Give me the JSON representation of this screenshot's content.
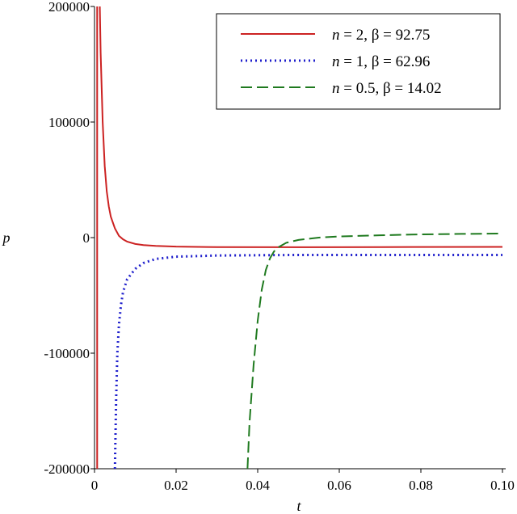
{
  "chart_data": {
    "type": "line",
    "xlabel": "t",
    "ylabel": "p",
    "xlim": [
      0,
      0.1
    ],
    "ylim": [
      -200000,
      200000
    ],
    "x_ticks": [
      0,
      0.02,
      0.04,
      0.06,
      0.08,
      0.1
    ],
    "x_tick_labels": [
      "0",
      "0.02",
      "0.04",
      "0.06",
      "0.08",
      "0.10"
    ],
    "y_ticks": [
      -200000,
      -100000,
      0,
      100000,
      200000
    ],
    "y_tick_labels": [
      "-200000",
      "-100000",
      "0",
      "100000",
      "200000"
    ],
    "grid": false,
    "legend_position": "top-right",
    "series": [
      {
        "name": "n = 2, β = 92.75",
        "n_label": "n",
        "rest_label": " = 2, β = 92.75",
        "color": "#cc2222",
        "style": "solid",
        "vertical_asymptote": 0.00065,
        "points": [
          [
            0.0013,
            200000
          ],
          [
            0.0015,
            160000
          ],
          [
            0.002,
            100000
          ],
          [
            0.0025,
            62000
          ],
          [
            0.003,
            40000
          ],
          [
            0.0035,
            27000
          ],
          [
            0.004,
            18000
          ],
          [
            0.005,
            8000
          ],
          [
            0.006,
            1500
          ],
          [
            0.007,
            -1500
          ],
          [
            0.008,
            -3500
          ],
          [
            0.01,
            -5500
          ],
          [
            0.012,
            -6500
          ],
          [
            0.015,
            -7200
          ],
          [
            0.02,
            -7800
          ],
          [
            0.03,
            -8200
          ],
          [
            0.05,
            -8300
          ],
          [
            0.07,
            -8200
          ],
          [
            0.1,
            -8000
          ]
        ]
      },
      {
        "name": "n = 1, β = 62.96",
        "n_label": "n",
        "rest_label": " = 1, β = 62.96",
        "color": "#1f1fcc",
        "style": "dotted",
        "points": [
          [
            0.005,
            -200000
          ],
          [
            0.0053,
            -140000
          ],
          [
            0.0056,
            -100000
          ],
          [
            0.006,
            -75000
          ],
          [
            0.0065,
            -58000
          ],
          [
            0.007,
            -47000
          ],
          [
            0.008,
            -36000
          ],
          [
            0.01,
            -27000
          ],
          [
            0.012,
            -22000
          ],
          [
            0.015,
            -18500
          ],
          [
            0.02,
            -16500
          ],
          [
            0.03,
            -15500
          ],
          [
            0.05,
            -15000
          ],
          [
            0.07,
            -15000
          ],
          [
            0.1,
            -15000
          ]
        ]
      },
      {
        "name": "n = 0.5, β = 14.02",
        "n_label": "n",
        "rest_label": " = 0.5, β = 14.02",
        "color": "#1f7a1f",
        "style": "dashed",
        "points": [
          [
            0.0375,
            -200000
          ],
          [
            0.038,
            -160000
          ],
          [
            0.039,
            -110000
          ],
          [
            0.04,
            -72000
          ],
          [
            0.041,
            -45000
          ],
          [
            0.042,
            -28000
          ],
          [
            0.043,
            -18000
          ],
          [
            0.044,
            -12000
          ],
          [
            0.045,
            -8500
          ],
          [
            0.047,
            -4500
          ],
          [
            0.05,
            -2000
          ],
          [
            0.055,
            0
          ],
          [
            0.06,
            1000
          ],
          [
            0.07,
            2000
          ],
          [
            0.08,
            2800
          ],
          [
            0.09,
            3200
          ],
          [
            0.1,
            3500
          ]
        ]
      }
    ]
  }
}
